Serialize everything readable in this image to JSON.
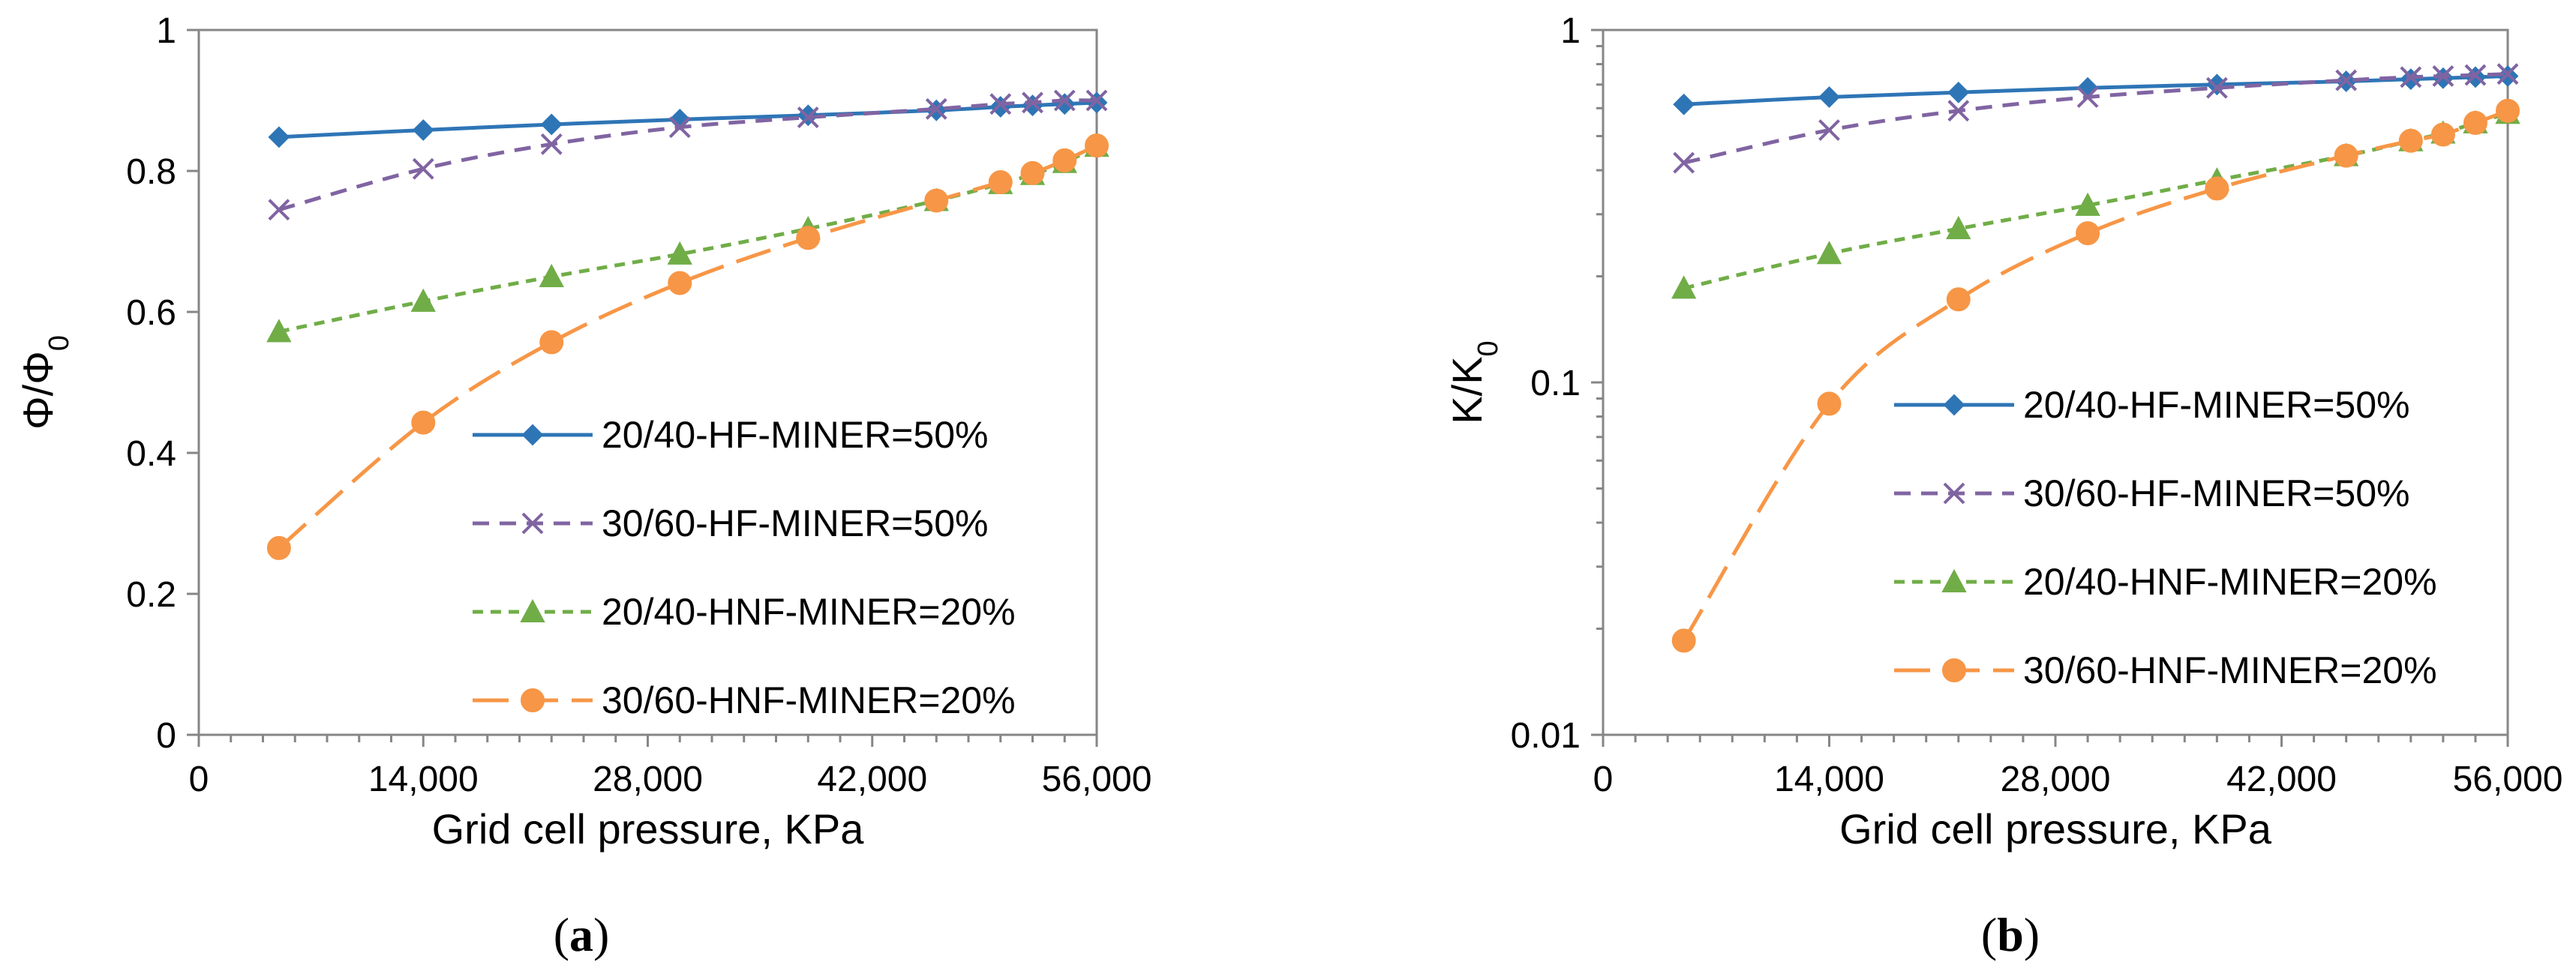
{
  "chart_data": [
    {
      "type": "line",
      "panel_label": {
        "open": "(",
        "letter": "a",
        "close": ")"
      },
      "xlabel": "Grid cell pressure,  KPa",
      "ylabel": {
        "base": "Φ/Φ",
        "sub": "0"
      },
      "xlim": [
        0,
        56000
      ],
      "ylim": [
        0,
        1
      ],
      "yscale": "linear",
      "xticks": [
        0,
        14000,
        28000,
        42000,
        56000
      ],
      "xtick_labels": [
        "0",
        "14,000",
        "28,000",
        "42,000",
        "56,000"
      ],
      "yticks": [
        0,
        0.2,
        0.4,
        0.6,
        0.8,
        1
      ],
      "ytick_labels": [
        "0",
        "0.2",
        "0.4",
        "0.6",
        "0.8",
        "1"
      ],
      "legend_position": "lower-right",
      "series": [
        {
          "name": "20/40-HF-MINER=50%",
          "color": "#2E75B6",
          "dash": "solid",
          "marker": "diamond",
          "x": [
            5000,
            14000,
            22000,
            30000,
            38000,
            46000,
            50000,
            52000,
            54000,
            56000
          ],
          "y": [
            0.848,
            0.858,
            0.866,
            0.873,
            0.879,
            0.886,
            0.891,
            0.893,
            0.895,
            0.897
          ]
        },
        {
          "name": "30/60-HF-MINER=50%",
          "color": "#8064A2",
          "dash": "dash",
          "marker": "x",
          "x": [
            5000,
            14000,
            22000,
            30000,
            38000,
            46000,
            50000,
            52000,
            54000,
            56000
          ],
          "y": [
            0.745,
            0.803,
            0.838,
            0.862,
            0.876,
            0.888,
            0.895,
            0.897,
            0.9,
            0.9
          ]
        },
        {
          "name": "20/40-HNF-MINER=20%",
          "color": "#70AD47",
          "dash": "shortdash",
          "marker": "triangle",
          "x": [
            5000,
            14000,
            22000,
            30000,
            38000,
            46000,
            50000,
            52000,
            54000,
            56000
          ],
          "y": [
            0.572,
            0.615,
            0.65,
            0.682,
            0.718,
            0.758,
            0.782,
            0.795,
            0.812,
            0.835
          ]
        },
        {
          "name": "30/60-HNF-MINER=20%",
          "color": "#F79646",
          "dash": "longdash",
          "marker": "circle",
          "x": [
            5000,
            14000,
            22000,
            30000,
            38000,
            46000,
            50000,
            52000,
            54000,
            56000
          ],
          "y": [
            0.265,
            0.443,
            0.557,
            0.641,
            0.705,
            0.758,
            0.784,
            0.797,
            0.815,
            0.836
          ]
        }
      ]
    },
    {
      "type": "line",
      "panel_label": {
        "open": "(",
        "letter": "b",
        "close": ")"
      },
      "xlabel": "Grid cell pressure,  KPa",
      "ylabel": {
        "base": "K/K",
        "sub": "0"
      },
      "xlim": [
        0,
        56000
      ],
      "ylim": [
        0.01,
        1
      ],
      "yscale": "log",
      "xticks": [
        0,
        14000,
        28000,
        42000,
        56000
      ],
      "xtick_labels": [
        "0",
        "14,000",
        "28,000",
        "42,000",
        "56,000"
      ],
      "yticks": [
        0.01,
        0.1,
        1
      ],
      "ytick_labels": [
        "0.01",
        "0.1",
        "1"
      ],
      "legend_position": "lower-right",
      "series": [
        {
          "name": "20/40-HF-MINER=50%",
          "color": "#2E75B6",
          "dash": "solid",
          "marker": "diamond",
          "x": [
            5000,
            14000,
            22000,
            30000,
            38000,
            46000,
            50000,
            52000,
            54000,
            56000
          ],
          "y": [
            0.615,
            0.645,
            0.665,
            0.685,
            0.7,
            0.715,
            0.725,
            0.73,
            0.735,
            0.74
          ]
        },
        {
          "name": "30/60-HF-MINER=50%",
          "color": "#8064A2",
          "dash": "dash",
          "marker": "x",
          "x": [
            5000,
            14000,
            22000,
            30000,
            38000,
            46000,
            50000,
            52000,
            54000,
            56000
          ],
          "y": [
            0.42,
            0.52,
            0.59,
            0.645,
            0.685,
            0.72,
            0.735,
            0.74,
            0.745,
            0.75
          ]
        },
        {
          "name": "20/40-HNF-MINER=20%",
          "color": "#70AD47",
          "dash": "shortdash",
          "marker": "triangle",
          "x": [
            5000,
            14000,
            22000,
            30000,
            38000,
            46000,
            50000,
            52000,
            54000,
            56000
          ],
          "y": [
            0.185,
            0.232,
            0.273,
            0.318,
            0.375,
            0.44,
            0.485,
            0.51,
            0.545,
            0.58
          ]
        },
        {
          "name": "30/60-HNF-MINER=20%",
          "color": "#F79646",
          "dash": "longdash",
          "marker": "circle",
          "x": [
            5000,
            14000,
            22000,
            30000,
            38000,
            46000,
            50000,
            52000,
            54000,
            56000
          ],
          "y": [
            0.0185,
            0.087,
            0.172,
            0.265,
            0.355,
            0.44,
            0.485,
            0.505,
            0.545,
            0.59
          ]
        }
      ]
    }
  ]
}
